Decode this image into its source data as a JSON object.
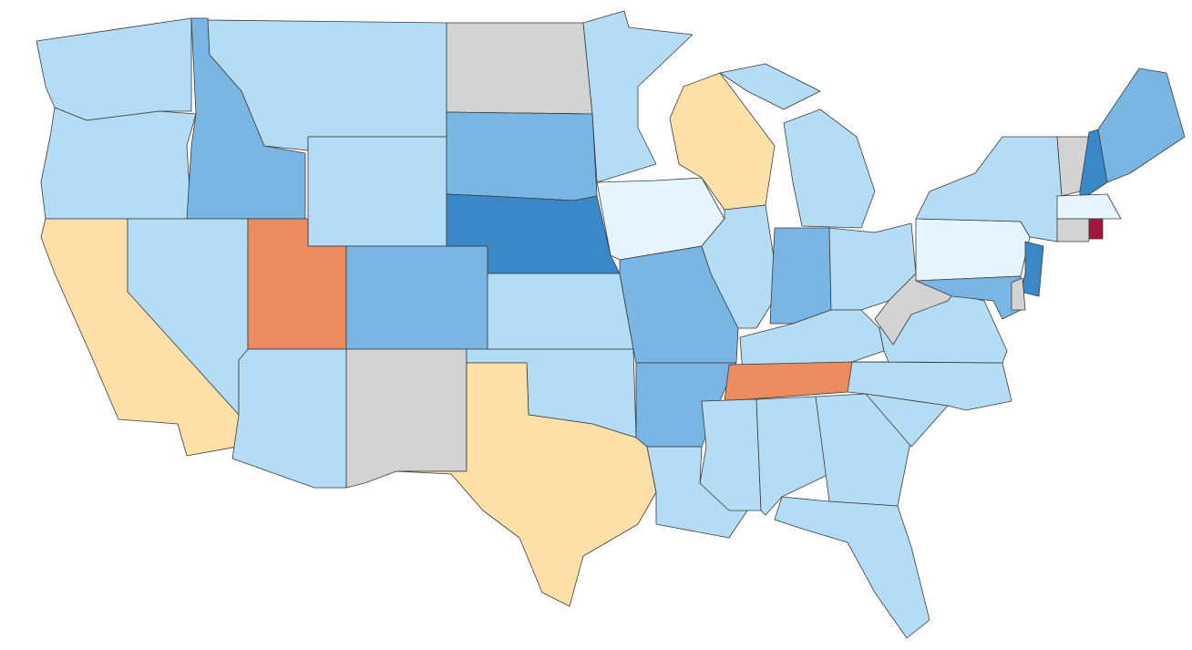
{
  "map": {
    "palette": [
      "#b5dcf5",
      "#79b6e4",
      "#3b88c9",
      "#e6f4fd",
      "#d3d3d3",
      "#fde0a8",
      "#ec8a60",
      "#a3153a"
    ]
  }
}
